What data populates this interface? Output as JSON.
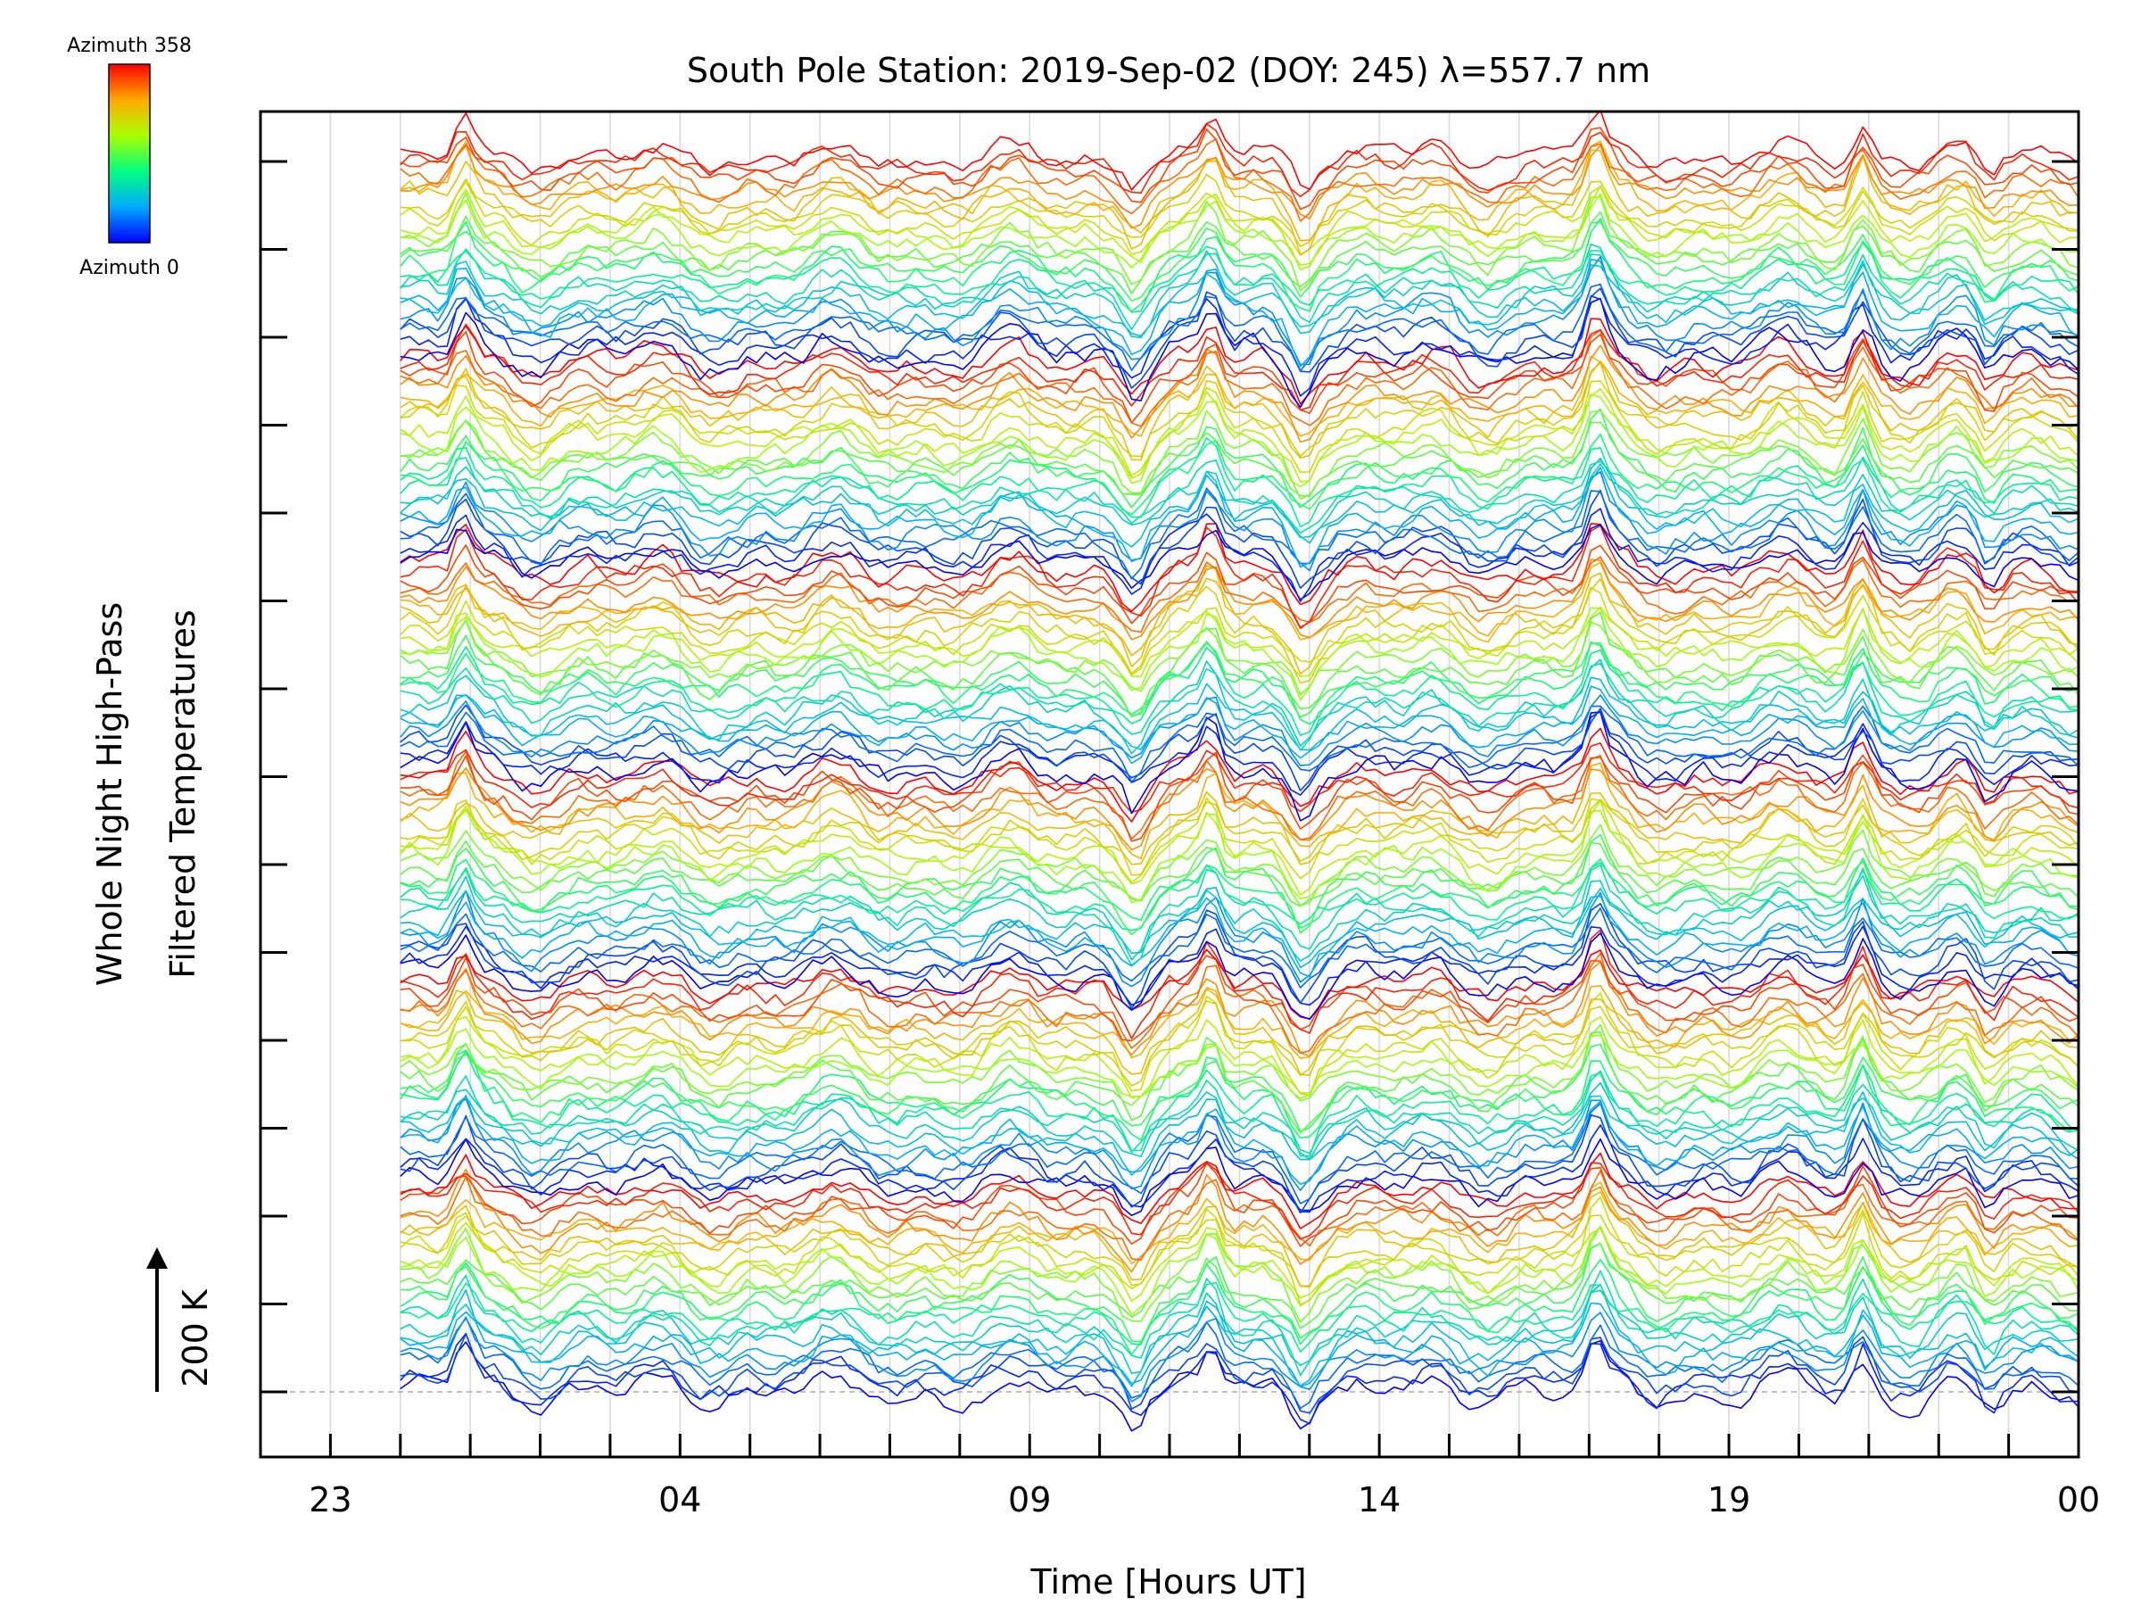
{
  "chart_data": {
    "type": "line",
    "title": "South Pole Station: 2019-Sep-02 (DOY: 245) λ=557.7 nm",
    "xlabel": "Time [Hours UT]",
    "ylabel_line1": "Whole Night High-Pass",
    "ylabel_line2": "Filtered Temperatures",
    "scale_label": "200 K",
    "x_tick_labels": [
      "23",
      "04",
      "09",
      "14",
      "19",
      "00"
    ],
    "x_range_hours": [
      -2,
      24
    ],
    "x_label_hours": [
      -1,
      4,
      9,
      14,
      19,
      24
    ],
    "data_start_hours": 0,
    "data_end_hours": 24,
    "colorbar": {
      "top_label": "Azimuth 358",
      "bottom_label": "Azimuth 0",
      "azimuth_min": 0,
      "azimuth_max": 358,
      "colors": [
        "#0000ff",
        "#00aaff",
        "#00ff80",
        "#aaff00",
        "#ffaa00",
        "#ff0000"
      ]
    },
    "series_description": "Stacked high-pass filtered temperature traces, color-coded by azimuth (blue=0 to red=358), offset vertically",
    "series_count": 150,
    "azimuth_groups": 6,
    "traces_per_group": 25,
    "common_peaks_hours": [
      0.9,
      11.6,
      17.1,
      20.9
    ],
    "common_dips_hours": [
      10.5,
      12.9,
      22.7
    ]
  }
}
